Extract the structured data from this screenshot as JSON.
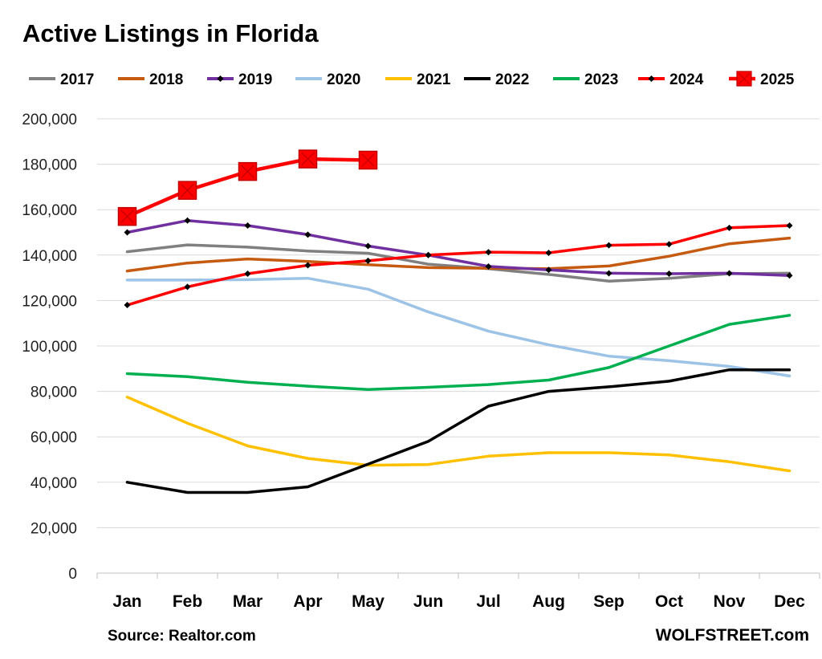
{
  "chart_data": {
    "type": "line",
    "title": "Active Listings in Florida",
    "source": "Source: Realtor.com",
    "brand": "WOLFSTREET.com",
    "xlabel": "",
    "ylabel": "",
    "ylim": [
      0,
      200000
    ],
    "yticks": [
      "0",
      "20,000",
      "40,000",
      "60,000",
      "80,000",
      "100,000",
      "120,000",
      "140,000",
      "160,000",
      "180,000",
      "200,000"
    ],
    "grid": true,
    "legend_position": "top",
    "categories": [
      "Jan",
      "Feb",
      "Mar",
      "Apr",
      "May",
      "Jun",
      "Jul",
      "Aug",
      "Sep",
      "Oct",
      "Nov",
      "Dec"
    ],
    "series": [
      {
        "name": "2017",
        "color": "#808080",
        "marker": "none",
        "values": [
          141500,
          144500,
          143500,
          141800,
          140800,
          136000,
          134000,
          131500,
          128500,
          129800,
          131800,
          132000
        ]
      },
      {
        "name": "2018",
        "color": "#C55A11",
        "marker": "none",
        "values": [
          133000,
          136500,
          138300,
          137200,
          135800,
          134500,
          134200,
          134000,
          135200,
          139500,
          145000,
          147500
        ]
      },
      {
        "name": "2019",
        "color": "#7030A0",
        "marker": "diamond",
        "values": [
          150000,
          155200,
          153000,
          149000,
          144000,
          140000,
          135000,
          133500,
          132000,
          131800,
          132000,
          131000
        ]
      },
      {
        "name": "2020",
        "color": "#9DC3E6",
        "marker": "none",
        "values": [
          129000,
          129000,
          129200,
          129800,
          125000,
          115000,
          106500,
          100500,
          95500,
          93500,
          91000,
          86800
        ]
      },
      {
        "name": "2021",
        "color": "#FFC000",
        "marker": "none",
        "values": [
          77500,
          66000,
          56000,
          50500,
          47500,
          47800,
          51500,
          53000,
          53000,
          52000,
          49000,
          45000
        ]
      },
      {
        "name": "2022",
        "color": "#000000",
        "marker": "none",
        "values": [
          40000,
          35500,
          35500,
          38000,
          48000,
          58000,
          73500,
          80000,
          82000,
          84500,
          89500,
          89500
        ]
      },
      {
        "name": "2023",
        "color": "#00B050",
        "marker": "none",
        "values": [
          87800,
          86500,
          84000,
          82300,
          80800,
          81800,
          83000,
          85000,
          90500,
          100000,
          109500,
          113500
        ]
      },
      {
        "name": "2024",
        "color": "#FF0000",
        "marker": "diamond",
        "values": [
          118000,
          126000,
          131800,
          135500,
          137500,
          140000,
          141300,
          141000,
          144300,
          144800,
          152000,
          153000
        ]
      },
      {
        "name": "2025",
        "color": "#FF0000",
        "marker": "square",
        "values": [
          157000,
          168500,
          176800,
          182300,
          181800,
          null,
          null,
          null,
          null,
          null,
          null,
          null
        ]
      }
    ]
  }
}
